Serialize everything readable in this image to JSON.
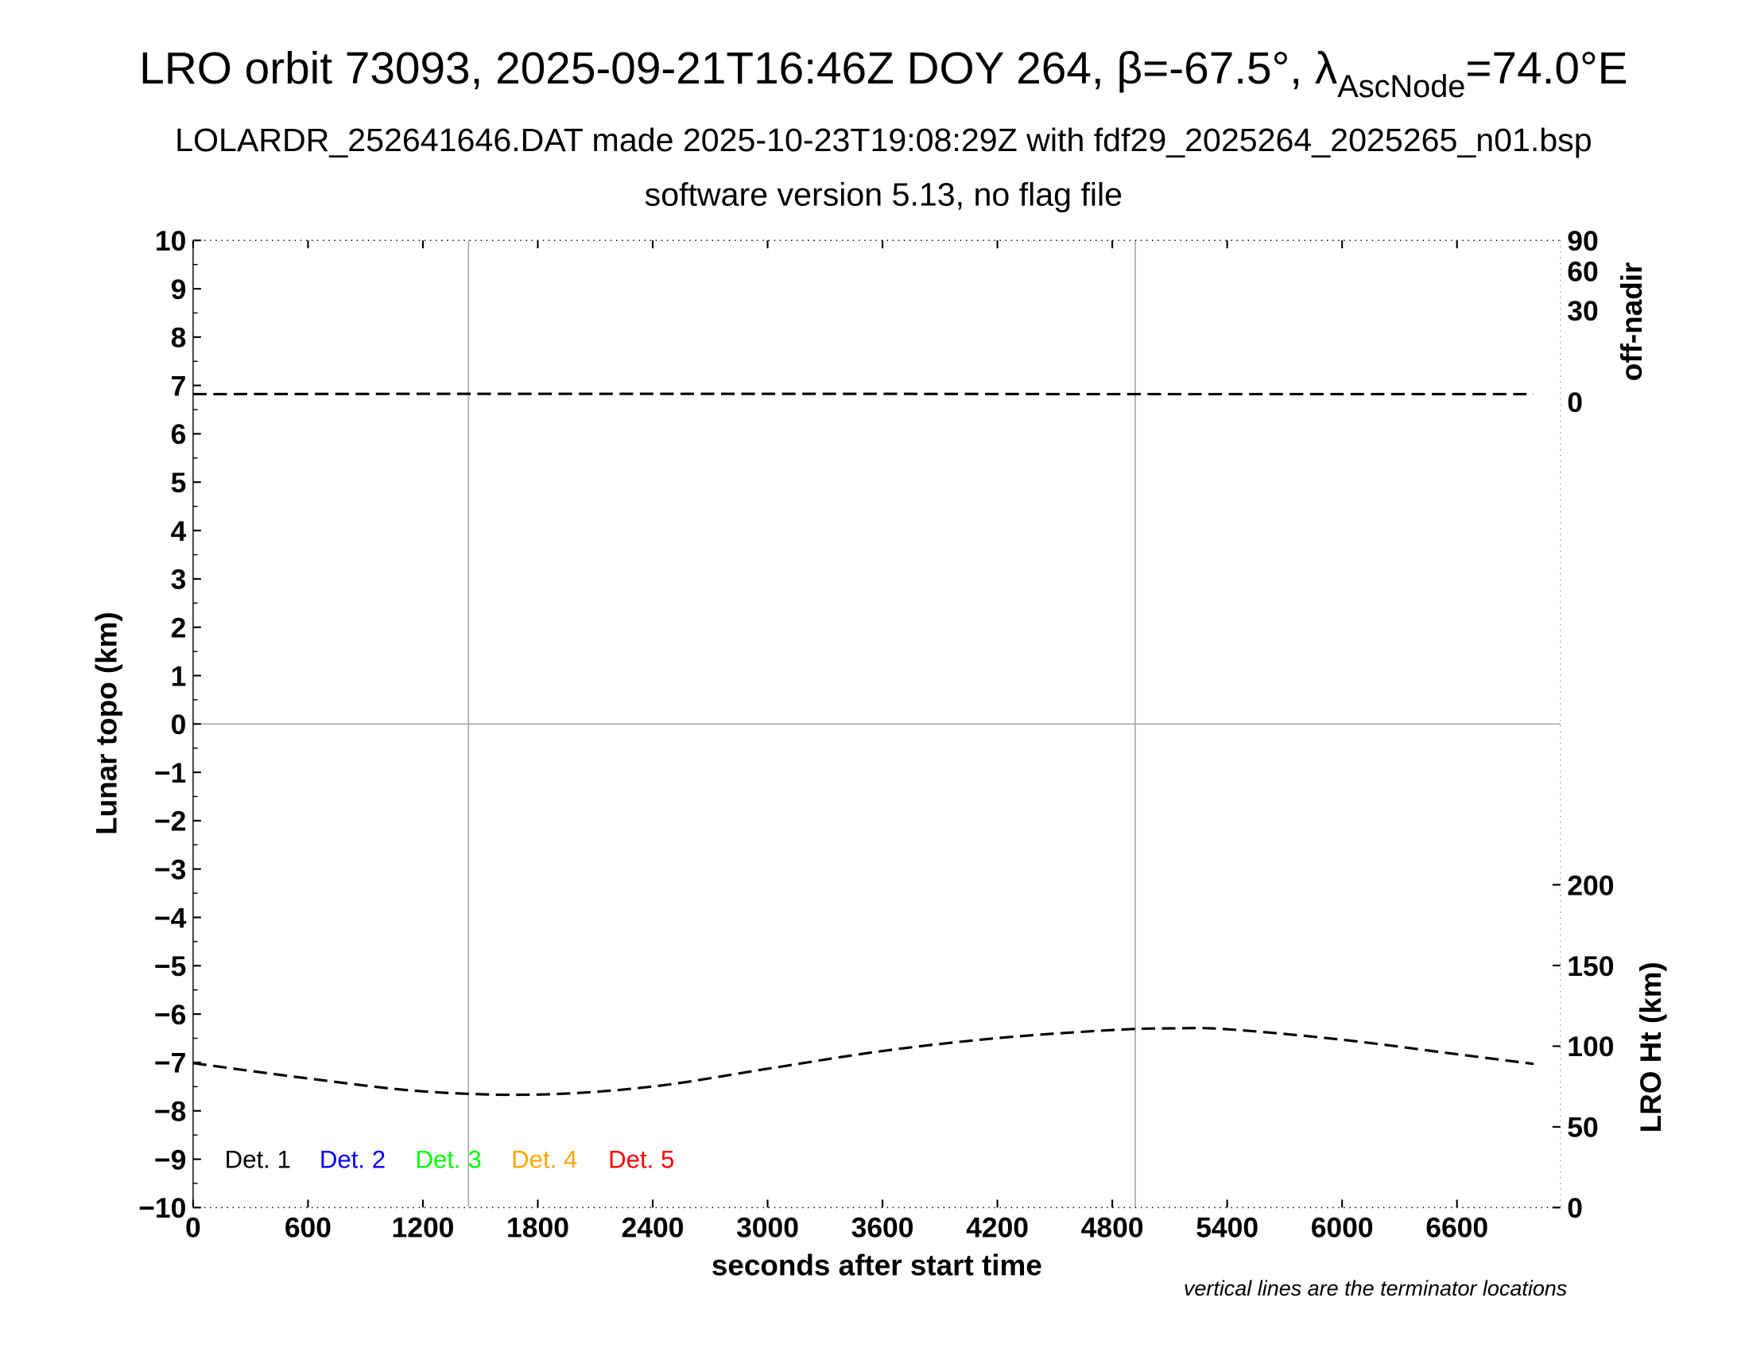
{
  "chart_data": {
    "type": "line",
    "title_main": "LRO orbit 73093, 2025-09-21T16:46Z DOY 264, β=-67.5°, λ",
    "title_sub": "AscNode",
    "title_end": "=74.0°E",
    "subtitle1": "LOLARDR_252641646.DAT made 2025-10-23T19:08:29Z with fdf29_2025264_2025265_n01.bsp",
    "subtitle2": "software version 5.13, no flag file",
    "xlabel": "seconds after start time",
    "ylabel_left": "Lunar topo (km)",
    "ylabel_right_top": "off-nadir",
    "ylabel_right_bottom": "LRO Ht (km)",
    "note": "vertical lines are the terminator locations",
    "xlim": [
      0,
      7140
    ],
    "ylim_left": [
      -10,
      10
    ],
    "x_ticks": [
      "0",
      "600",
      "1200",
      "1800",
      "2400",
      "3000",
      "3600",
      "4200",
      "4800",
      "5400",
      "6000",
      "6600"
    ],
    "y_left_ticks": [
      "10",
      "9",
      "8",
      "7",
      "6",
      "5",
      "4",
      "3",
      "2",
      "1",
      "0",
      "−1",
      "−2",
      "−3",
      "−4",
      "−5",
      "−6",
      "−7",
      "−8",
      "−9",
      "−10"
    ],
    "off_nadir_ticks": [
      "90",
      "60",
      "30",
      "0"
    ],
    "lro_ht_ticks": [
      "200",
      "150",
      "100",
      "50",
      "0"
    ],
    "lro_ht_range": [
      0,
      200
    ],
    "terminator_seconds": [
      1438,
      4920
    ],
    "legend": [
      {
        "label": "Det. 1",
        "color": "#000000"
      },
      {
        "label": "Det. 2",
        "color": "#0000ff"
      },
      {
        "label": "Det. 3",
        "color": "#00ff00"
      },
      {
        "label": "Det. 4",
        "color": "#ffa500"
      },
      {
        "label": "Det. 5",
        "color": "#ff0000"
      }
    ],
    "series": [
      {
        "axis": "off-nadir (deg)",
        "style": "dashed",
        "x": [
          0,
          1200,
          2400,
          3600,
          4800,
          6000,
          7000
        ],
        "y": [
          2.5,
          2.6,
          2.6,
          2.6,
          2.5,
          2.5,
          2.5
        ]
      },
      {
        "axis": "LRO Ht (km)",
        "style": "dashed",
        "x": [
          0,
          600,
          1200,
          1800,
          2400,
          3000,
          3600,
          4200,
          4800,
          5100,
          5400,
          6000,
          6600,
          7000
        ],
        "y": [
          89.5,
          80,
          72,
          70,
          75,
          86,
          97,
          105,
          110,
          111,
          110.5,
          104,
          95,
          89
        ]
      }
    ],
    "grid": "terminator lines and zero line only",
    "legend_placement": "bottom-left"
  }
}
